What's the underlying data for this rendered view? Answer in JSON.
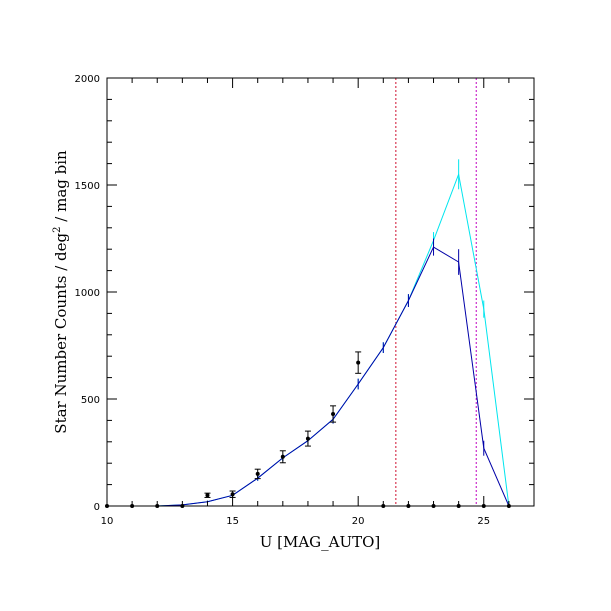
{
  "chart_data": {
    "type": "line",
    "xlabel": "U [MAG_AUTO]",
    "ylabel_parts": {
      "main": "Star Number Counts / deg",
      "sup": "2",
      "tail": " / mag bin"
    },
    "xlim": [
      10,
      27
    ],
    "ylim": [
      0,
      2000
    ],
    "x_ticks": [
      10,
      15,
      20,
      25
    ],
    "y_ticks": [
      0,
      500,
      1000,
      1500,
      2000
    ],
    "x_minor_step": 1,
    "y_minor_step": 100,
    "grid": false,
    "legend": "none",
    "colors": {
      "axes": "#000000",
      "observed": "#000000",
      "model_cyan": "#00e5ee",
      "model_blue": "#0000a8",
      "vline_red": "#d01030",
      "vline_magenta": "#c000c0"
    },
    "vertical_lines": [
      {
        "x": 21.5,
        "color_key": "vline_red"
      },
      {
        "x": 24.7,
        "color_key": "vline_magenta"
      }
    ],
    "series": [
      {
        "kind": "line-with-errors",
        "color_key": "model_cyan",
        "x": [
          12,
          13,
          14,
          15,
          16,
          17,
          18,
          19,
          20,
          21,
          22,
          23,
          24,
          25,
          26
        ],
        "y": [
          0,
          5,
          20,
          50,
          130,
          225,
          305,
          405,
          570,
          740,
          960,
          1240,
          1550,
          920,
          0
        ],
        "err": [
          0,
          3,
          5,
          8,
          12,
          15,
          18,
          20,
          25,
          25,
          30,
          40,
          70,
          40,
          0
        ]
      },
      {
        "kind": "line-with-errors",
        "color_key": "model_blue",
        "x": [
          12,
          13,
          14,
          15,
          16,
          17,
          18,
          19,
          20,
          21,
          22,
          23,
          24,
          25,
          26
        ],
        "y": [
          0,
          5,
          20,
          50,
          130,
          225,
          305,
          405,
          570,
          740,
          960,
          1210,
          1140,
          270,
          0
        ],
        "err": [
          0,
          3,
          5,
          8,
          12,
          15,
          18,
          20,
          25,
          25,
          30,
          40,
          60,
          35,
          0
        ]
      },
      {
        "kind": "points-with-errors",
        "color_key": "observed",
        "x": [
          10,
          11,
          12,
          13,
          14,
          15,
          16,
          17,
          18,
          19,
          20,
          21,
          22,
          23,
          24,
          25,
          26
        ],
        "y": [
          0,
          0,
          0,
          0,
          50,
          55,
          150,
          230,
          315,
          430,
          670,
          0,
          0,
          0,
          0,
          0,
          0
        ],
        "err": [
          0,
          0,
          0,
          0,
          10,
          15,
          22,
          28,
          35,
          38,
          50,
          0,
          0,
          0,
          0,
          0,
          0
        ]
      }
    ]
  }
}
